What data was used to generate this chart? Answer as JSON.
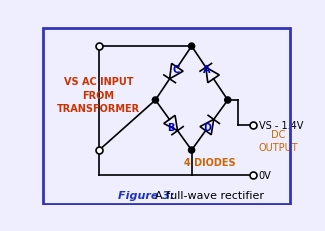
{
  "bg_color": "#eeeeff",
  "border_color": "#3333bb",
  "title": "Figure 3:",
  "title_color": "#2233bb",
  "subtitle": " A full-wave rectifier",
  "subtitle_color": "#000000",
  "vs_label": "VS AC INPUT\nFROM\nTRANSFORMER",
  "vs_label_color": "#cc3300",
  "diodes_label": "4 DIODES",
  "diodes_label_color": "#cc6600",
  "output_label": "VS - 1.4V",
  "dc_label": "DC\nOUTPUT",
  "dc_label_color": "#cc6600",
  "ov_label": "0V",
  "diode_label_color": "#0000cc",
  "line_color": "#000000",
  "dot_color": "#000000"
}
